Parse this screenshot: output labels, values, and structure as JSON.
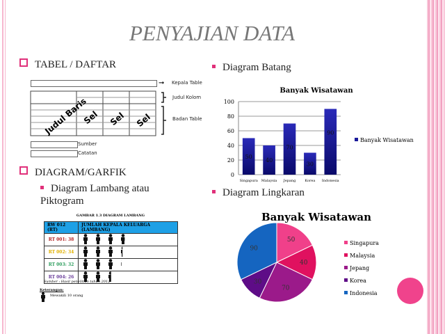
{
  "title": "PENYAJIAN DATA",
  "left": {
    "section1": "TABEL / DAFTAR",
    "table_diagram": {
      "kepala": "Kepala Table",
      "judul_kolom": "Judul Kolom",
      "badan": "Badan Table",
      "judul_baris": "Judul Baris",
      "sel": [
        "Sel",
        "Sel",
        "Sel"
      ],
      "sumber": "Sumber",
      "catatan": "Catatan"
    },
    "section2": "DIAGRAM/GARFIK",
    "sub_bullet": "Diagram Lambang atau Piktogram",
    "pictogram": {
      "caption": "GAMBAR 1.3 DIAGRAM LAMBANG",
      "headers": [
        "RW 012 (RT)",
        "JUMLAH KEPALA KELUARGA (LAMBANG)"
      ],
      "rows": [
        {
          "label": "RT 001: 38",
          "value": 38,
          "color": "#b22222"
        },
        {
          "label": "RT 002: 34",
          "value": 34,
          "color": "#e0b000"
        },
        {
          "label": "RT 003: 32",
          "value": 32,
          "color": "#2e9e5e"
        },
        {
          "label": "RT 004: 26",
          "value": 26,
          "color": "#6a3d9a"
        }
      ],
      "header_color": "#1ea0e6",
      "source": "Sumber : Hasil penelitian tahun 2012",
      "legend_title": "Keterangan:",
      "legend_text": "Mewakili 10 orang",
      "unit": 10
    }
  },
  "right": {
    "bullet1": "Diagram Batang",
    "bullet2": "Diagram Lingkaran"
  },
  "chart_data": [
    {
      "type": "bar",
      "title": "Banyak Wisatawan",
      "categories": [
        "Singapura",
        "Malaysia",
        "Jepang",
        "Korea",
        "Indonesia"
      ],
      "series": [
        {
          "name": "Banyak Wisatawan",
          "values": [
            50,
            40,
            70,
            30,
            90
          ]
        }
      ],
      "ylim": [
        0,
        100
      ],
      "yticks": [
        "0",
        "20",
        "40",
        "60",
        "80",
        "100"
      ],
      "grid": true,
      "legend": "right",
      "color": "#1a1a9a"
    },
    {
      "type": "pie",
      "title": "Banyak Wisatawan",
      "categories": [
        "Singapura",
        "Malaysia",
        "Jepang",
        "Korea",
        "Indonesia"
      ],
      "values": [
        50,
        40,
        70,
        30,
        90
      ],
      "colors": [
        "#f0408a",
        "#e0115f",
        "#9b1a8a",
        "#5e0c87",
        "#1565c0"
      ],
      "legend": "right"
    }
  ]
}
